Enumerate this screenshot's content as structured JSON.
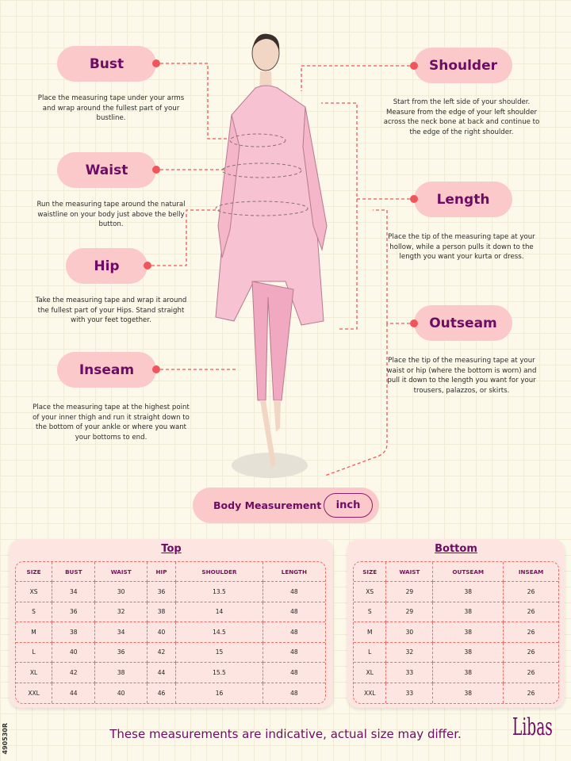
{
  "labels": {
    "bust": {
      "title": "Bust",
      "desc": "Place the measuring tape under your arms and wrap around the fullest part of your bustline."
    },
    "waist": {
      "title": "Waist",
      "desc": "Run the measuring tape around the natural waistline on your body just above the belly button."
    },
    "hip": {
      "title": "Hip",
      "desc": "Take the measuring tape and wrap it around the fullest part of your Hips. Stand straight with your feet together."
    },
    "inseam": {
      "title": "Inseam",
      "desc": "Place the measuring tape at the highest point of your inner thigh and run it straight down to the bottom of your ankle or where you want your bottoms to end."
    },
    "shoulder": {
      "title": "Shoulder",
      "desc": "Start from the left side of your shoulder. Measure from the edge of your left shoulder across the neck bone at back and continue to the edge of the right shoulder."
    },
    "length": {
      "title": "Length",
      "desc": "Place the tip of the measuring tape at your hollow, while a person pulls it down to the length you want your kurta or dress."
    },
    "outseam": {
      "title": "Outseam",
      "desc": "Place the tip of the measuring tape at your waist or hip (where the bottom is worn) and pull it down to the length you want for your trousers, palazzos, or skirts."
    }
  },
  "measurement": {
    "label": "Body Measurement",
    "unit": "inch"
  },
  "top": {
    "title": "Top",
    "headers": [
      "SIZE",
      "BUST",
      "WAIST",
      "HIP",
      "SHOULDER",
      "LENGTH"
    ],
    "rows": [
      [
        "XS",
        "34",
        "30",
        "36",
        "13.5",
        "48"
      ],
      [
        "S",
        "36",
        "32",
        "38",
        "14",
        "48"
      ],
      [
        "M",
        "38",
        "34",
        "40",
        "14.5",
        "48"
      ],
      [
        "L",
        "40",
        "36",
        "42",
        "15",
        "48"
      ],
      [
        "XL",
        "42",
        "38",
        "44",
        "15.5",
        "48"
      ],
      [
        "XXL",
        "44",
        "40",
        "46",
        "16",
        "48"
      ]
    ]
  },
  "bottom": {
    "title": "Bottom",
    "headers": [
      "SIZE",
      "WAIST",
      "OUTSEAM",
      "INSEAM"
    ],
    "rows": [
      [
        "XS",
        "29",
        "38",
        "26"
      ],
      [
        "S",
        "29",
        "38",
        "26"
      ],
      [
        "M",
        "30",
        "38",
        "26"
      ],
      [
        "L",
        "32",
        "38",
        "26"
      ],
      [
        "XL",
        "33",
        "38",
        "26"
      ],
      [
        "XXL",
        "33",
        "38",
        "26"
      ]
    ]
  },
  "footer": "These measurements are indicative, actual size may differ.",
  "brand": "Libas",
  "code": "490530R",
  "colors": {
    "accent": "#f2545b",
    "brand": "#6e0b63",
    "pill": "#fcc9cb"
  }
}
